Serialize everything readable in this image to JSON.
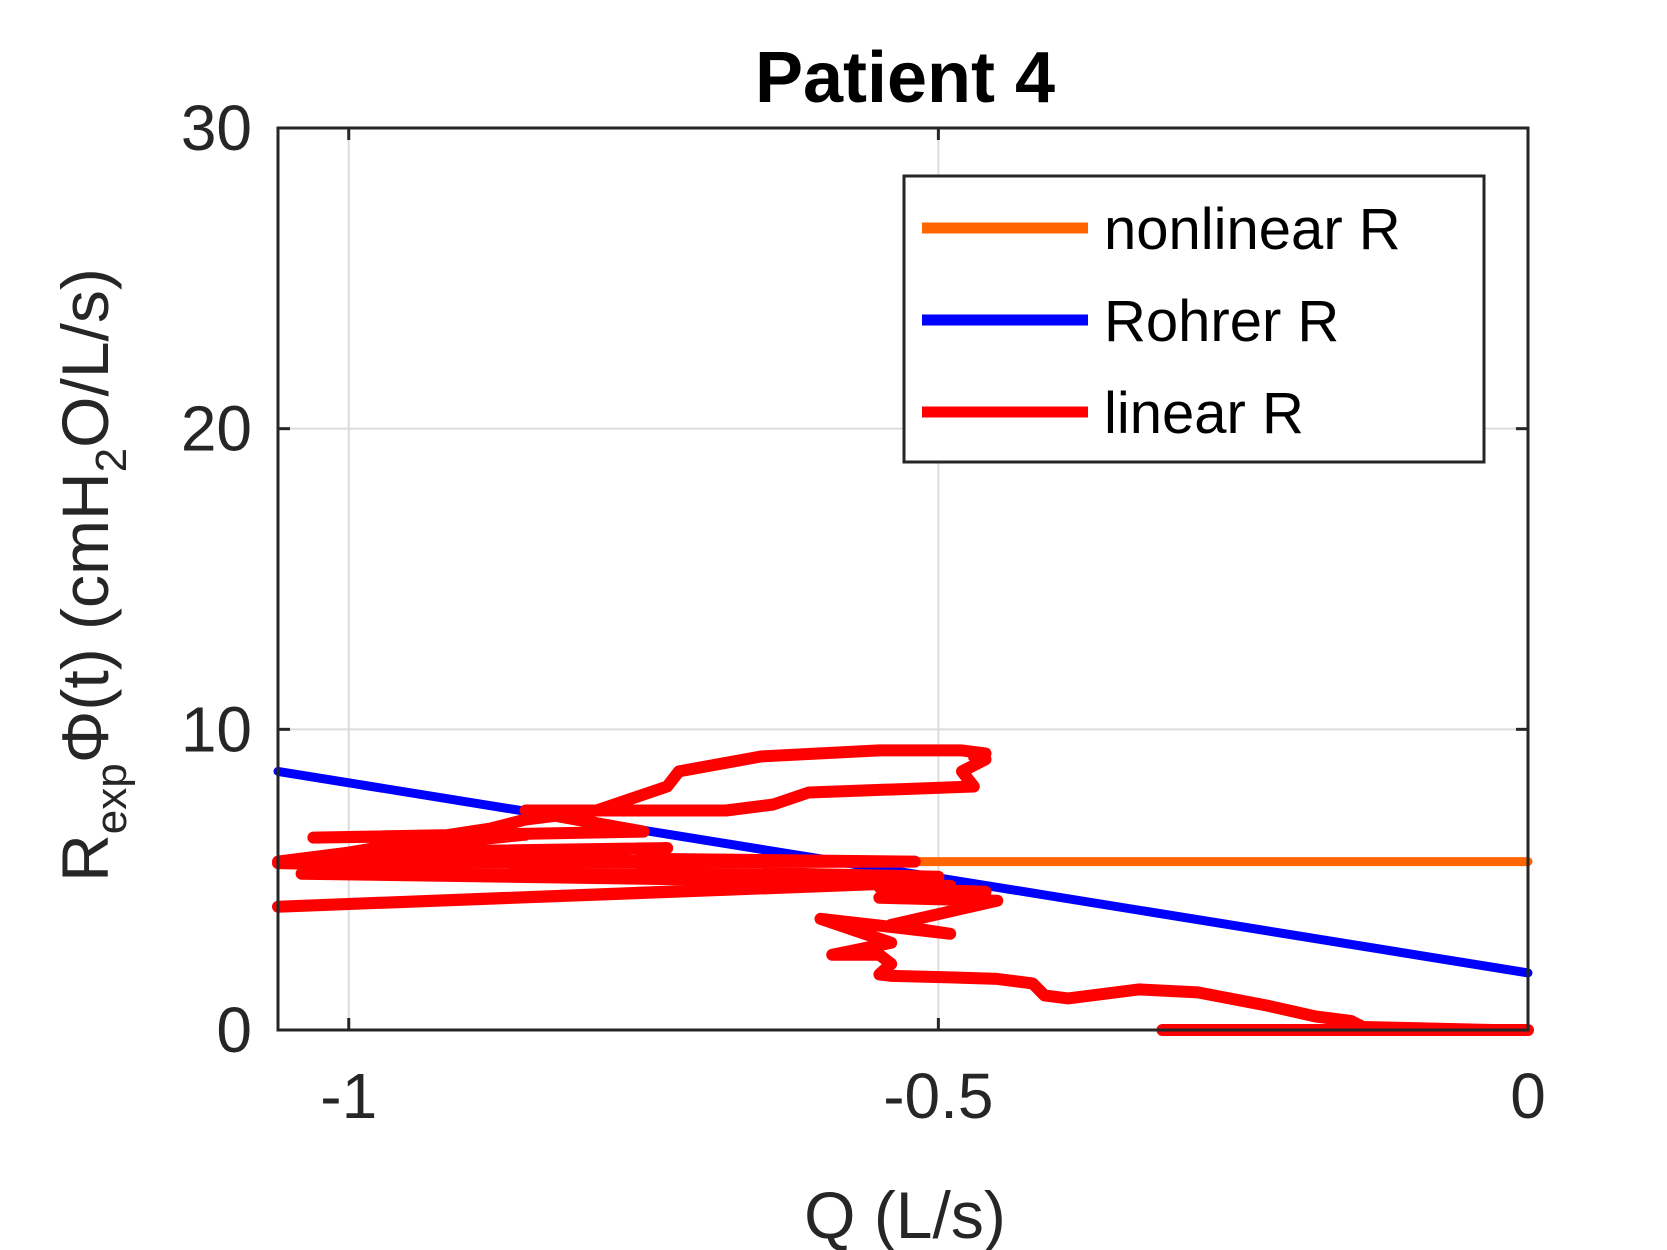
{
  "chart_data": {
    "type": "line",
    "title": "Patient 4",
    "xlabel": "Q (L/s)",
    "ylabel": {
      "base": "R",
      "sub1": "exp",
      "mid": "Φ(t) (cmH",
      "sub2": "2",
      "tail": "O/L/s)"
    },
    "xlim": [
      -1.06,
      0
    ],
    "ylim": [
      0,
      30
    ],
    "xticks": [
      -1,
      -0.5,
      0
    ],
    "xtick_labels": [
      "-1",
      "-0.5",
      "0"
    ],
    "yticks": [
      0,
      10,
      20,
      30
    ],
    "ytick_labels": [
      "0",
      "10",
      "20",
      "30"
    ],
    "grid": true,
    "legend_position": "top-right",
    "series": [
      {
        "name": "nonlinear R",
        "color": "#ff6600",
        "x": [
          -1.06,
          0
        ],
        "y": [
          5.6,
          5.6
        ]
      },
      {
        "name": "Rohrer R",
        "color": "#0000ff",
        "x": [
          -1.06,
          0
        ],
        "y": [
          8.6,
          1.9
        ]
      },
      {
        "name": "linear R",
        "color": "#ff0000",
        "x": [
          -0.31,
          0,
          -0.03,
          -0.14,
          -0.15,
          -0.18,
          -0.22,
          -0.28,
          -0.33,
          -0.37,
          -0.39,
          -0.41,
          -0.42,
          -0.45,
          -0.49,
          -0.54,
          -0.55,
          -0.54,
          -0.55,
          -0.59,
          -0.54,
          -0.57,
          -0.6,
          -0.49,
          -0.54,
          -0.45,
          -0.55,
          -0.46,
          -0.54,
          -0.49,
          -0.55,
          -0.5,
          -1.06,
          -0.52,
          -1.04,
          -0.5,
          -1.06,
          -0.52,
          -1.02,
          -0.73,
          -1.0,
          -0.85,
          -1.03,
          -0.75,
          -0.85,
          -0.68,
          -0.64,
          -0.61,
          -0.47,
          -0.48,
          -0.46,
          -0.47,
          -0.46,
          -0.48,
          -0.5,
          -0.55,
          -0.6,
          -0.65,
          -0.72,
          -0.73,
          -0.79,
          -0.85,
          -0.88,
          -0.93,
          -0.97,
          -1.0,
          -1.06
        ],
        "y": [
          0,
          0,
          0,
          0.1,
          0.3,
          0.45,
          0.8,
          1.25,
          1.35,
          1.15,
          1.05,
          1.15,
          1.55,
          1.7,
          1.75,
          1.8,
          1.85,
          2.2,
          2.5,
          2.5,
          2.9,
          3.3,
          3.7,
          3.2,
          3.5,
          4.3,
          4.4,
          4.6,
          4.7,
          4.8,
          4.75,
          4.95,
          4.1,
          4.9,
          5.2,
          5.1,
          5.55,
          5.6,
          5.8,
          6.05,
          5.9,
          6.5,
          6.4,
          6.6,
          7.3,
          7.3,
          7.5,
          7.9,
          8.1,
          8.6,
          9.0,
          9.1,
          9.2,
          9.3,
          9.3,
          9.3,
          9.2,
          9.1,
          8.6,
          8.1,
          7.3,
          7.0,
          6.7,
          6.4,
          6.1,
          5.9,
          5.6
        ]
      }
    ]
  }
}
